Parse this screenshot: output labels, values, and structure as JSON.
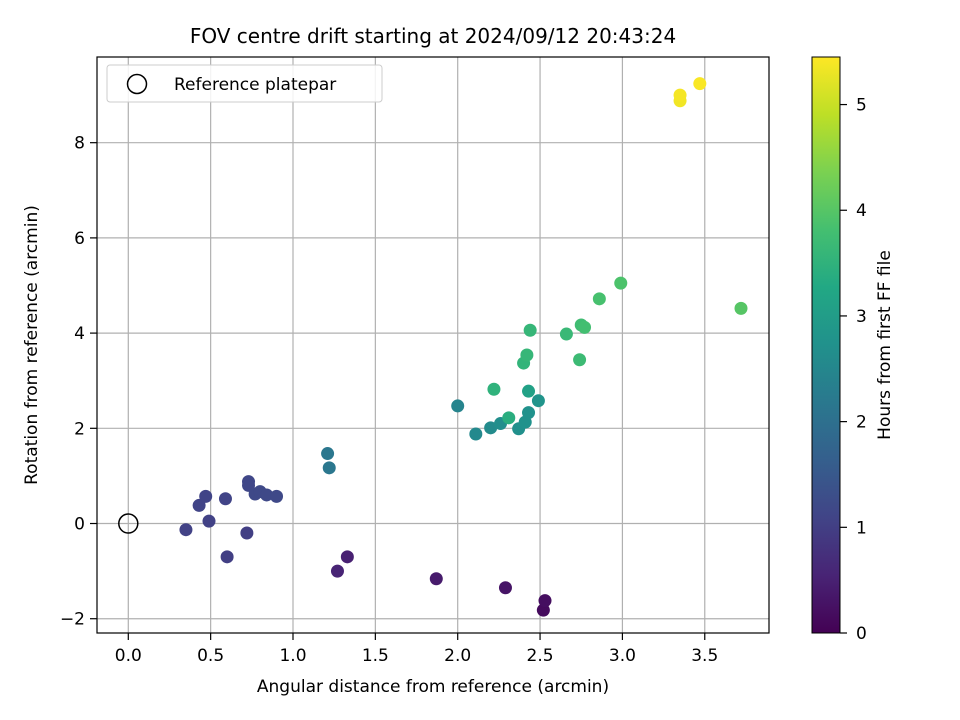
{
  "chart_data": {
    "type": "scatter",
    "title": "FOV centre drift starting at 2024/09/12 20:43:24",
    "xlabel": "Angular distance from reference (arcmin)",
    "ylabel": "Rotation from reference (arcmin)",
    "xlim": [
      -0.19,
      3.89
    ],
    "ylim": [
      -2.3,
      9.8
    ],
    "xticks": [
      0.0,
      0.5,
      1.0,
      1.5,
      2.0,
      2.5,
      3.0,
      3.5
    ],
    "xtick_labels": [
      "0.0",
      "0.5",
      "1.0",
      "1.5",
      "2.0",
      "2.5",
      "3.0",
      "3.5"
    ],
    "yticks": [
      -2,
      0,
      2,
      4,
      6,
      8
    ],
    "ytick_labels": [
      "−2",
      "0",
      "2",
      "4",
      "6",
      "8"
    ],
    "grid": true,
    "legend": {
      "position": "top-left",
      "entries": [
        "Reference platepar"
      ]
    },
    "reference_point": {
      "x": 0.0,
      "y": 0.0,
      "label": "Reference platepar"
    },
    "colorbar": {
      "label": "Hours from first FF file",
      "colormap": "viridis",
      "range": [
        0,
        5.45
      ],
      "ticks": [
        0,
        1,
        2,
        3,
        4,
        5
      ],
      "tick_labels": [
        "0",
        "1",
        "2",
        "3",
        "4",
        "5"
      ]
    },
    "points": [
      {
        "x": 2.52,
        "y": -1.82,
        "hours": 0.15
      },
      {
        "x": 2.53,
        "y": -1.62,
        "hours": 0.2
      },
      {
        "x": 2.29,
        "y": -1.35,
        "hours": 0.3
      },
      {
        "x": 1.87,
        "y": -1.16,
        "hours": 0.4
      },
      {
        "x": 1.33,
        "y": -0.7,
        "hours": 0.5
      },
      {
        "x": 1.27,
        "y": -1.0,
        "hours": 0.55
      },
      {
        "x": 0.6,
        "y": -0.7,
        "hours": 1.0
      },
      {
        "x": 0.72,
        "y": -0.2,
        "hours": 1.0
      },
      {
        "x": 0.35,
        "y": -0.13,
        "hours": 1.05
      },
      {
        "x": 0.49,
        "y": 0.05,
        "hours": 1.05
      },
      {
        "x": 0.43,
        "y": 0.38,
        "hours": 1.1
      },
      {
        "x": 0.47,
        "y": 0.57,
        "hours": 1.1
      },
      {
        "x": 0.59,
        "y": 0.52,
        "hours": 1.1
      },
      {
        "x": 0.73,
        "y": 0.88,
        "hours": 1.15
      },
      {
        "x": 0.73,
        "y": 0.8,
        "hours": 1.15
      },
      {
        "x": 0.77,
        "y": 0.62,
        "hours": 1.2
      },
      {
        "x": 0.8,
        "y": 0.67,
        "hours": 1.2
      },
      {
        "x": 0.84,
        "y": 0.6,
        "hours": 1.2
      },
      {
        "x": 0.9,
        "y": 0.57,
        "hours": 1.2
      },
      {
        "x": 1.21,
        "y": 1.47,
        "hours": 2.15
      },
      {
        "x": 1.22,
        "y": 1.17,
        "hours": 2.15
      },
      {
        "x": 2.0,
        "y": 2.47,
        "hours": 2.45
      },
      {
        "x": 2.11,
        "y": 1.88,
        "hours": 2.55
      },
      {
        "x": 2.2,
        "y": 2.01,
        "hours": 2.6
      },
      {
        "x": 2.26,
        "y": 2.1,
        "hours": 2.65
      },
      {
        "x": 2.37,
        "y": 1.99,
        "hours": 2.7
      },
      {
        "x": 2.41,
        "y": 2.13,
        "hours": 2.75
      },
      {
        "x": 2.43,
        "y": 2.33,
        "hours": 2.75
      },
      {
        "x": 2.49,
        "y": 2.58,
        "hours": 2.8
      },
      {
        "x": 2.43,
        "y": 2.78,
        "hours": 3.1
      },
      {
        "x": 2.31,
        "y": 2.22,
        "hours": 3.4
      },
      {
        "x": 2.22,
        "y": 2.82,
        "hours": 3.5
      },
      {
        "x": 2.4,
        "y": 3.37,
        "hours": 3.55
      },
      {
        "x": 2.42,
        "y": 3.54,
        "hours": 3.6
      },
      {
        "x": 2.44,
        "y": 4.06,
        "hours": 3.6
      },
      {
        "x": 2.66,
        "y": 3.98,
        "hours": 3.65
      },
      {
        "x": 2.74,
        "y": 3.44,
        "hours": 3.7
      },
      {
        "x": 2.75,
        "y": 4.17,
        "hours": 3.75
      },
      {
        "x": 2.77,
        "y": 4.12,
        "hours": 3.8
      },
      {
        "x": 2.86,
        "y": 4.72,
        "hours": 3.85
      },
      {
        "x": 2.99,
        "y": 5.05,
        "hours": 3.9
      },
      {
        "x": 3.72,
        "y": 4.52,
        "hours": 4.0
      },
      {
        "x": 3.35,
        "y": 8.88,
        "hours": 5.35
      },
      {
        "x": 3.35,
        "y": 9.0,
        "hours": 5.38
      },
      {
        "x": 3.47,
        "y": 9.24,
        "hours": 5.42
      }
    ]
  }
}
